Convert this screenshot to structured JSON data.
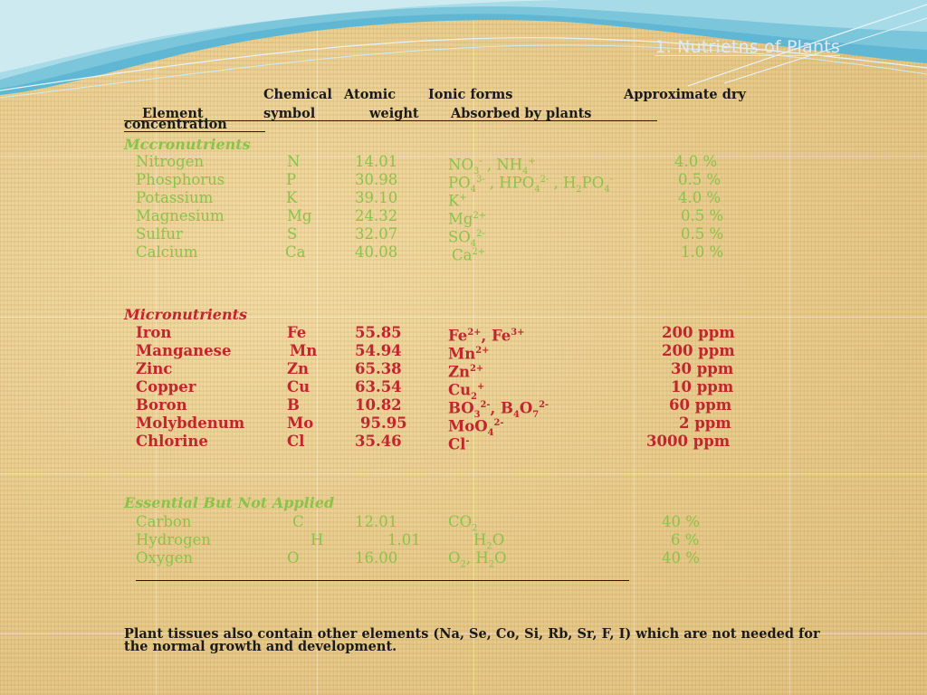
{
  "title": "1. Nutrietns of Plants",
  "table": {
    "headers": {
      "element": "Element",
      "chemical": "Chemical",
      "symbol": "symbol",
      "atomic": "Atomic",
      "weight": "weight",
      "ionic_forms": "Ionic forms",
      "absorbed_by_plants": "Absorbed by plants",
      "approx_dry": "Approximate dry",
      "concentration": "concentration"
    },
    "sections": [
      {
        "label": "Mccronutrients",
        "color": "#8bc34a",
        "rows": [
          {
            "element": "Nitrogen",
            "symbol": "N",
            "weight": "14.01",
            "ions": "NO3- , NH4+",
            "conc": "4.0 %"
          },
          {
            "element": "Phosphorus",
            "symbol": "P",
            "weight": "30.98",
            "ions": "PO43- , HPO42- , H2PO4-",
            "conc": "0.5 %"
          },
          {
            "element": "Potassium",
            "symbol": "K",
            "weight": "39.10",
            "ions": "K+",
            "conc": "4.0 %"
          },
          {
            "element": "Magnesium",
            "symbol": "Mg",
            "weight": "24.32",
            "ions": "Mg2+",
            "conc": "0.5 %"
          },
          {
            "element": "Sulfur",
            "symbol": "S",
            "weight": "32.07",
            "ions": "SO42-",
            "conc": "0.5 %"
          },
          {
            "element": "Calcium",
            "symbol": "Ca",
            "weight": "40.08",
            "ions": "Ca2+",
            "conc": "1.0 %"
          }
        ]
      },
      {
        "label": "Micronutrients",
        "color": "#c0262e",
        "rows": [
          {
            "element": "Iron",
            "symbol": "Fe",
            "weight": "55.85",
            "ions": "Fe2+, Fe3+",
            "conc": "200 ppm"
          },
          {
            "element": "Manganese",
            "symbol": "Mn",
            "weight": "54.94",
            "ions": "Mn2+",
            "conc": "200 ppm"
          },
          {
            "element": "Zinc",
            "symbol": "Zn",
            "weight": "65.38",
            "ions": "Zn2+",
            "conc": "30 ppm"
          },
          {
            "element": "Copper",
            "symbol": "Cu",
            "weight": "63.54",
            "ions": "Cu2+",
            "conc": "10 ppm"
          },
          {
            "element": "Boron",
            "symbol": "B",
            "weight": "10.82",
            "ions": "BO32-, B4O72-",
            "conc": "60 ppm"
          },
          {
            "element": "Molybdenum",
            "symbol": "Mo",
            "weight": "95.95",
            "ions": "MoO42-",
            "conc": "2 ppm"
          },
          {
            "element": "Chlorine",
            "symbol": "Cl",
            "weight": "35.46",
            "ions": "Cl-",
            "conc": "3000 ppm"
          }
        ]
      },
      {
        "label": "Essential But Not Applied",
        "color": "#8bc34a",
        "rows": [
          {
            "element": "Carbon",
            "symbol": "C",
            "weight": "12.01",
            "ions": "CO2",
            "conc": "40 %"
          },
          {
            "element": "Hydrogen",
            "symbol": "H",
            "weight": "1.01",
            "ions": "H2O",
            "conc": "6 %"
          },
          {
            "element": "Oxygen",
            "symbol": "O",
            "weight": "16.00",
            "ions": "O2, H2O",
            "conc": "40 %"
          }
        ]
      }
    ]
  },
  "note": "Plant tissues also contain other elements (Na, Se, Co, Si, Rb, Sr, F, I) which are not needed for the normal growth and development."
}
